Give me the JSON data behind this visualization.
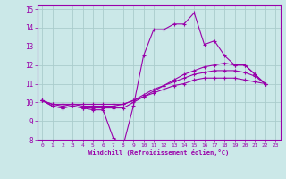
{
  "xlabel": "Windchill (Refroidissement éolien,°C)",
  "bg_color": "#cbe8e8",
  "line_color": "#9900aa",
  "grid_color": "#aacccc",
  "axis_color": "#660066",
  "xlim": [
    -0.5,
    23.5
  ],
  "ylim": [
    8,
    15.2
  ],
  "xticks": [
    0,
    1,
    2,
    3,
    4,
    5,
    6,
    7,
    8,
    9,
    10,
    11,
    12,
    13,
    14,
    15,
    16,
    17,
    18,
    19,
    20,
    21,
    22,
    23
  ],
  "yticks": [
    8,
    9,
    10,
    11,
    12,
    13,
    14,
    15
  ],
  "lines": [
    [
      10.1,
      9.8,
      9.7,
      9.8,
      9.7,
      9.6,
      9.6,
      8.1,
      7.7,
      9.8,
      12.5,
      13.9,
      13.9,
      14.2,
      14.2,
      14.8,
      13.1,
      13.3,
      12.5,
      12.0,
      12.0,
      11.5,
      11.0
    ],
    [
      10.1,
      9.8,
      9.7,
      9.8,
      9.7,
      9.7,
      9.7,
      9.7,
      9.7,
      10.0,
      10.3,
      10.6,
      10.9,
      11.2,
      11.5,
      11.7,
      11.9,
      12.0,
      12.1,
      12.0,
      12.0,
      11.5,
      11.0
    ],
    [
      10.1,
      9.9,
      9.8,
      9.9,
      9.8,
      9.8,
      9.8,
      9.8,
      9.9,
      10.1,
      10.4,
      10.7,
      10.9,
      11.1,
      11.3,
      11.5,
      11.6,
      11.7,
      11.7,
      11.7,
      11.6,
      11.4,
      11.0
    ],
    [
      10.1,
      9.9,
      9.9,
      9.9,
      9.9,
      9.9,
      9.9,
      9.9,
      9.9,
      10.1,
      10.3,
      10.5,
      10.7,
      10.9,
      11.0,
      11.2,
      11.3,
      11.3,
      11.3,
      11.3,
      11.2,
      11.1,
      11.0
    ]
  ]
}
